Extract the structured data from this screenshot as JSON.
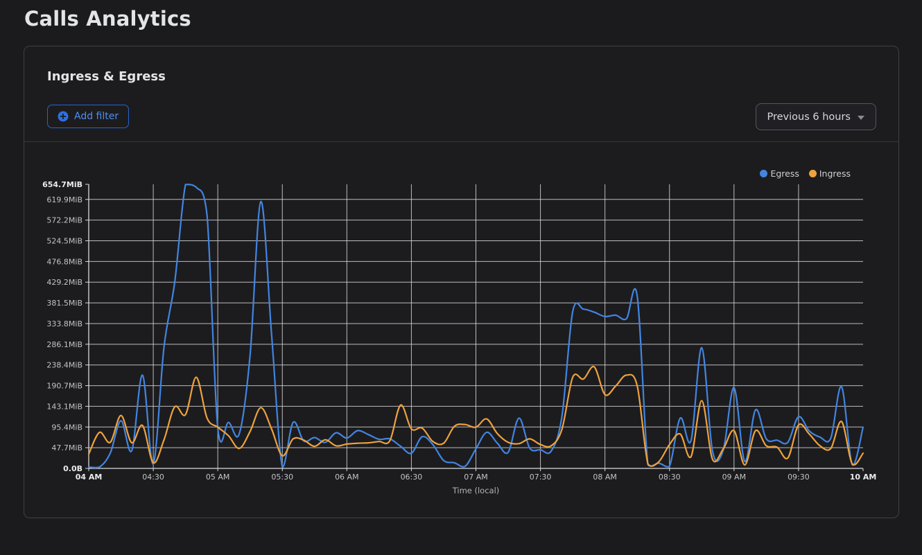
{
  "page": {
    "title": "Calls Analytics"
  },
  "card": {
    "title": "Ingress & Egress",
    "add_filter_label": "Add filter",
    "time_range": {
      "value": "Previous 6 hours"
    }
  },
  "theme": {
    "page_bg": "#1b1b1d",
    "card_bg": "#1c1c1f",
    "card_border": "#404046",
    "accent_blue": "#2e6fe0",
    "egress_color": "#4285e0",
    "ingress_color": "#eea23c",
    "grid_color": "#d7d8da",
    "axis_color": "#dcdcde"
  },
  "chart_data": {
    "type": "line",
    "title": "Ingress & Egress",
    "xlabel": "Time (local)",
    "ylabel": "",
    "x_start": "04:00",
    "x_end": "10:00",
    "x_step_minutes": 5,
    "x_range_minutes": [
      0,
      360
    ],
    "ylim": [
      0,
      654.7
    ],
    "y_unit": "MiB",
    "grid": true,
    "legend_position": "top-right",
    "x_ticks": [
      {
        "label": "04 AM",
        "minutes": 0,
        "bold": true
      },
      {
        "label": "04:30",
        "minutes": 30,
        "bold": false
      },
      {
        "label": "05 AM",
        "minutes": 60,
        "bold": false
      },
      {
        "label": "05:30",
        "minutes": 90,
        "bold": false
      },
      {
        "label": "06 AM",
        "minutes": 120,
        "bold": false
      },
      {
        "label": "06:30",
        "minutes": 150,
        "bold": false
      },
      {
        "label": "07 AM",
        "minutes": 180,
        "bold": false
      },
      {
        "label": "07:30",
        "minutes": 210,
        "bold": false
      },
      {
        "label": "08 AM",
        "minutes": 240,
        "bold": false
      },
      {
        "label": "08:30",
        "minutes": 270,
        "bold": false
      },
      {
        "label": "09 AM",
        "minutes": 300,
        "bold": false
      },
      {
        "label": "09:30",
        "minutes": 330,
        "bold": false
      },
      {
        "label": "10 AM",
        "minutes": 360,
        "bold": true
      }
    ],
    "y_ticks": [
      {
        "label": "0.0B",
        "value": 0,
        "bold": true
      },
      {
        "label": "47.7MiB",
        "value": 47.7,
        "bold": false
      },
      {
        "label": "95.4MiB",
        "value": 95.4,
        "bold": false
      },
      {
        "label": "143.1MiB",
        "value": 143.1,
        "bold": false
      },
      {
        "label": "190.7MiB",
        "value": 190.7,
        "bold": false
      },
      {
        "label": "238.4MiB",
        "value": 238.4,
        "bold": false
      },
      {
        "label": "286.1MiB",
        "value": 286.1,
        "bold": false
      },
      {
        "label": "333.8MiB",
        "value": 333.8,
        "bold": false
      },
      {
        "label": "381.5MiB",
        "value": 381.5,
        "bold": false
      },
      {
        "label": "429.2MiB",
        "value": 429.2,
        "bold": false
      },
      {
        "label": "476.8MiB",
        "value": 476.8,
        "bold": false
      },
      {
        "label": "524.5MiB",
        "value": 524.5,
        "bold": false
      },
      {
        "label": "572.2MiB",
        "value": 572.2,
        "bold": false
      },
      {
        "label": "619.9MiB",
        "value": 619.9,
        "bold": false
      },
      {
        "label": "654.7MiB",
        "value": 654.7,
        "bold": true
      }
    ],
    "series": [
      {
        "name": "Egress",
        "color": "#4285e0",
        "values_mib": [
          3,
          3,
          35,
          110,
          41,
          215,
          11,
          280,
          430,
          654,
          648,
          583,
          93,
          106,
          80,
          260,
          615,
          310,
          3,
          106,
          63,
          71,
          60,
          82,
          70,
          87,
          78,
          67,
          68,
          51,
          35,
          73,
          55,
          18,
          13,
          5,
          45,
          83,
          58,
          37,
          116,
          47,
          43,
          40,
          120,
          361,
          367,
          360,
          350,
          353,
          345,
          397,
          8,
          12,
          5,
          116,
          64,
          278,
          40,
          42,
          186,
          16,
          135,
          68,
          65,
          60,
          119,
          86,
          72,
          70,
          188,
          8,
          95
        ]
      },
      {
        "name": "Ingress",
        "color": "#eea23c",
        "values_mib": [
          33,
          83,
          60,
          122,
          59,
          99,
          13,
          66,
          142,
          124,
          210,
          116,
          95,
          75,
          46,
          85,
          140,
          91,
          29,
          68,
          65,
          51,
          66,
          52,
          56,
          58,
          59,
          62,
          64,
          146,
          91,
          93,
          62,
          58,
          97,
          101,
          95,
          114,
          80,
          60,
          57,
          68,
          55,
          52,
          90,
          210,
          206,
          234,
          170,
          190,
          215,
          190,
          10,
          15,
          55,
          79,
          27,
          156,
          21,
          45,
          87,
          8,
          87,
          52,
          49,
          24,
          100,
          79,
          52,
          46,
          108,
          10,
          35
        ]
      }
    ]
  }
}
